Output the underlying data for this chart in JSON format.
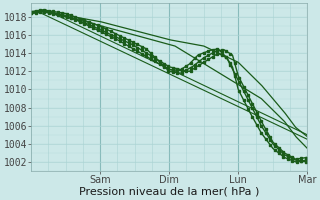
{
  "bg_color": "#cce8e8",
  "grid_color_major": "#88bbbb",
  "grid_color_minor": "#aad4d4",
  "line_color": "#1a5c1a",
  "ylabel_text": "Pression niveau de la mer( hPa )",
  "ylim": [
    1001.0,
    1019.5
  ],
  "yticks": [
    1002,
    1004,
    1006,
    1008,
    1010,
    1012,
    1014,
    1016,
    1018
  ],
  "xlim": [
    0,
    96
  ],
  "xtick_positions": [
    24,
    48,
    72,
    96
  ],
  "xtick_labels": [
    "Sam",
    "Dim",
    "Lun",
    "Mar"
  ],
  "tick_fontsize": 7,
  "label_fontsize": 8
}
